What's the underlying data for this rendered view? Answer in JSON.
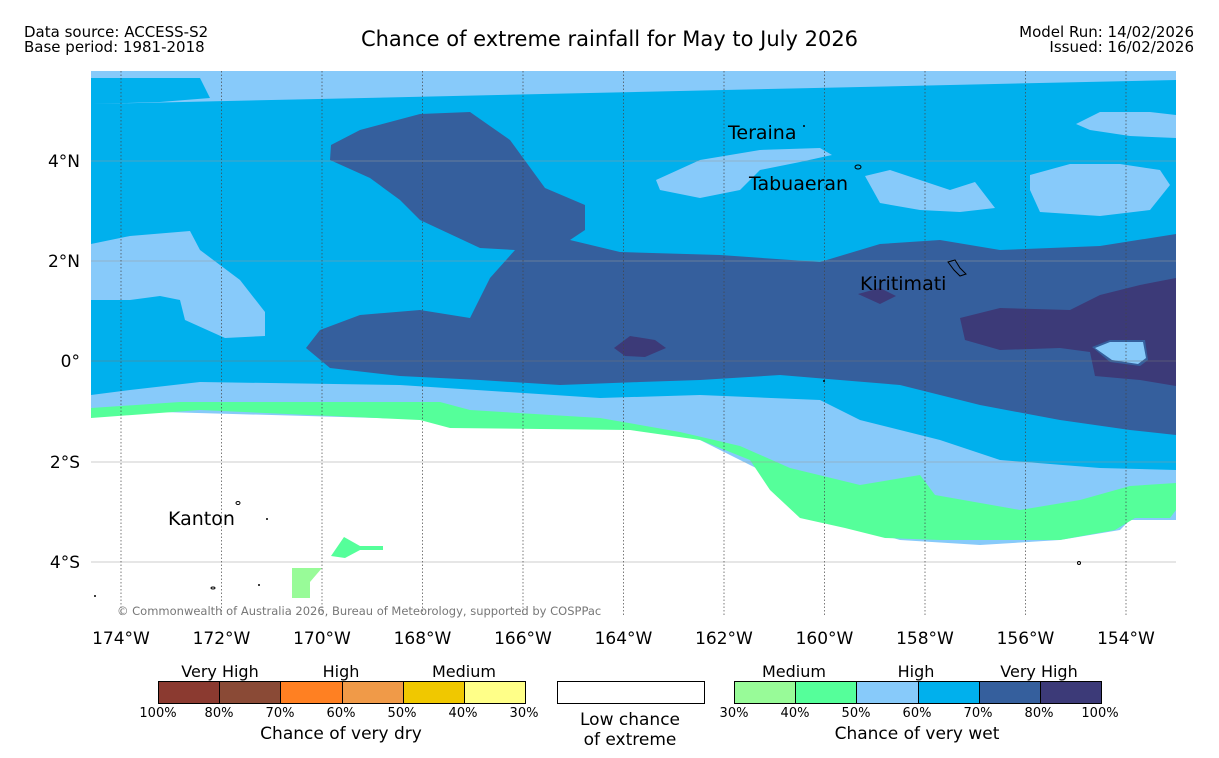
{
  "header": {
    "data_source": "Data source: ACCESS-S2",
    "base_period": "Base period: 1981-2018",
    "title": "Chance of extreme rainfall for May to July 2026",
    "model_run": "Model Run: 14/02/2026",
    "issued": "Issued: 16/02/2026"
  },
  "map": {
    "lat_labels": [
      "4°N",
      "2°N",
      "0°",
      "2°S",
      "4°S"
    ],
    "lon_labels": [
      "174°W",
      "172°W",
      "170°W",
      "168°W",
      "166°W",
      "164°W",
      "162°W",
      "160°W",
      "158°W",
      "156°W",
      "154°W"
    ],
    "places": [
      "Teraina",
      "Tabuaeran",
      "Kiritimati",
      "Kanton"
    ],
    "copyright": "© Commonwealth of Australia 2026, Bureau of Meteorology, supported by COSPPac",
    "colors": {
      "wet_30_40": "#98fb98",
      "wet_40_50": "#55ff9a",
      "wet_50_60": "#87cafa",
      "wet_60_70": "#00b0ed",
      "wet_70_80": "#355f9d",
      "wet_80_100": "#3c3a78",
      "low_chance": "#ffffff"
    }
  },
  "legend": {
    "dry": {
      "categories": [
        "Very High",
        "High",
        "Medium"
      ],
      "ticks": [
        "100%",
        "80%",
        "70%",
        "60%",
        "50%",
        "40%",
        "30%"
      ],
      "title": "Chance of very dry",
      "colors": [
        "#8b3a30",
        "#8a4a36",
        "#ff8022",
        "#f09a48",
        "#f0c800",
        "#ffff88"
      ]
    },
    "low": {
      "line1": "Low chance",
      "line2": "of extreme"
    },
    "wet": {
      "categories": [
        "Medium",
        "High",
        "Very High"
      ],
      "ticks": [
        "30%",
        "40%",
        "50%",
        "60%",
        "70%",
        "80%",
        "100%"
      ],
      "title": "Chance of very wet",
      "colors": [
        "#98fb98",
        "#55ff9a",
        "#87cafa",
        "#00b0ed",
        "#355f9d",
        "#3c3a78"
      ]
    }
  }
}
